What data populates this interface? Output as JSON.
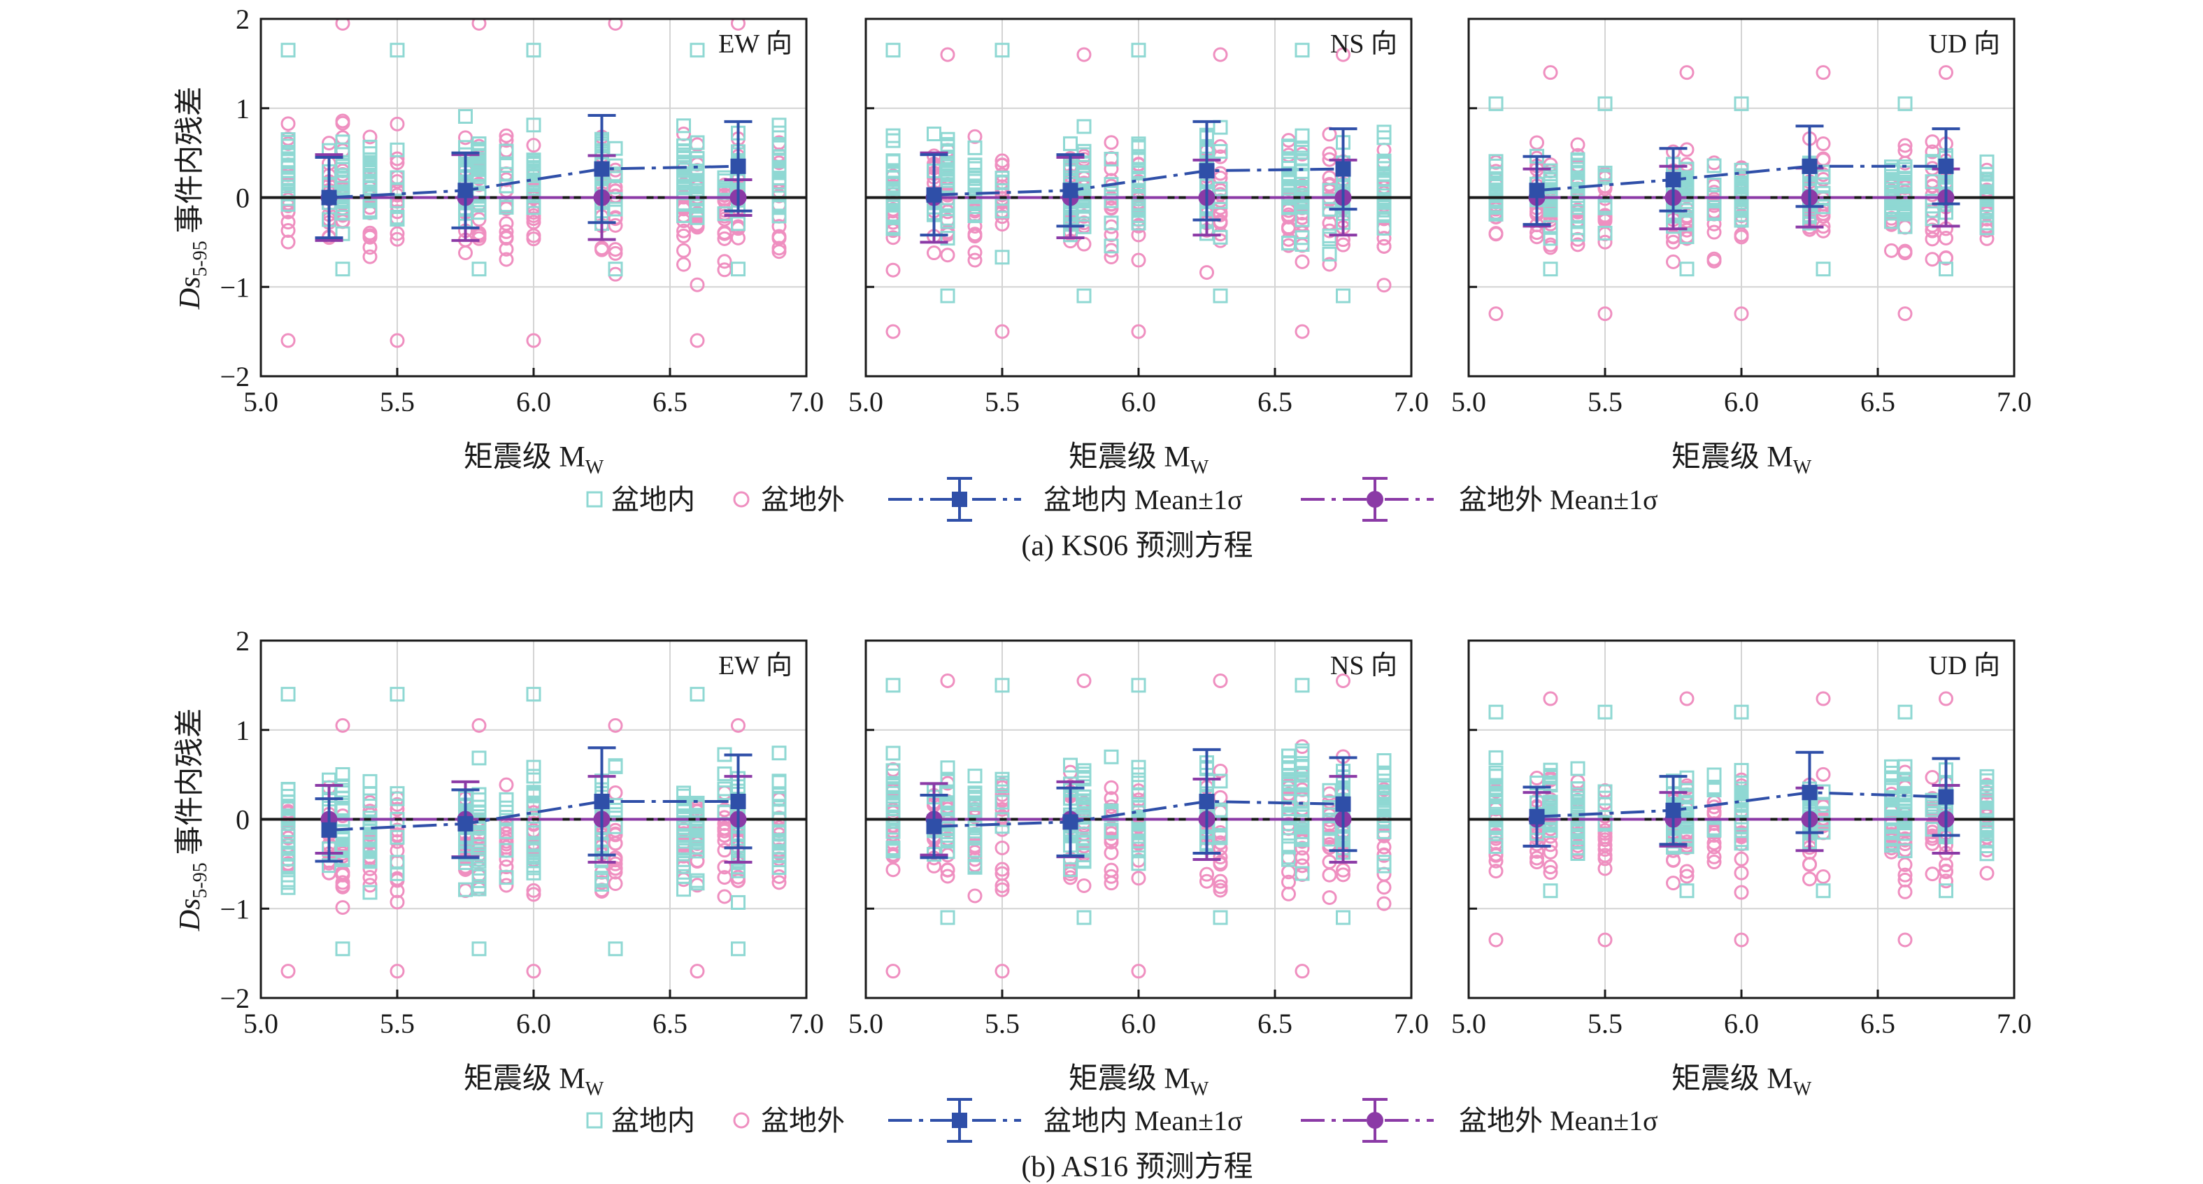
{
  "colors": {
    "in_basin": "#8fd8d3",
    "out_basin": "#ef8fc0",
    "in_mean": "#2f4fa8",
    "out_mean": "#8b3aa6",
    "grid": "#d4d4d4",
    "axis": "#1a1a1a"
  },
  "legend": {
    "in_basin": "盆地内",
    "out_basin": "盆地外",
    "in_mean": "盆地内 Mean±1σ",
    "out_mean": "盆地外 Mean±1σ"
  },
  "axis_text": {
    "xlabel": "矩震级 M",
    "xlabel_sub": "W",
    "ylabel_pre": "Ds",
    "ylabel_sub": "5-95",
    "ylabel_post": " 事件内残差"
  },
  "rows": [
    {
      "caption": "(a) KS06 预测方程",
      "panels": [
        "EW 向",
        "NS 向",
        "UD 向"
      ]
    },
    {
      "caption": "(b) AS16 预测方程",
      "panels": [
        "EW 向",
        "NS 向",
        "UD 向"
      ]
    }
  ],
  "chart_data": {
    "type": "scatter",
    "xlim": [
      5.0,
      7.0
    ],
    "ylim": [
      -2,
      2
    ],
    "xticks": [
      "5.0",
      "5.5",
      "6.0",
      "6.5",
      "7.0"
    ],
    "yticks": [
      "−2",
      "−1",
      "0",
      "1",
      "2"
    ],
    "grid": true,
    "reference_line_y": 0,
    "legend_position": "bottom",
    "magnitude_columns": [
      5.1,
      5.25,
      5.3,
      5.4,
      5.5,
      5.75,
      5.8,
      5.9,
      6.0,
      6.25,
      6.3,
      6.55,
      6.6,
      6.7,
      6.75,
      6.9
    ],
    "panels": [
      {
        "id": "a-EW",
        "in_basin_range": [
          -0.8,
          1.65
        ],
        "out_basin_range": [
          -1.6,
          1.95
        ],
        "in_mean": {
          "x": [
            5.25,
            5.75,
            6.25,
            6.75
          ],
          "mean": [
            0.0,
            0.08,
            0.32,
            0.35
          ],
          "sd": [
            0.45,
            0.42,
            0.6,
            0.5
          ]
        },
        "out_mean": {
          "x": [
            5.25,
            5.75,
            6.25,
            6.75
          ],
          "mean": [
            0,
            0,
            0,
            0
          ],
          "sd": [
            0.48,
            0.48,
            0.47,
            0.2
          ]
        }
      },
      {
        "id": "a-NS",
        "in_basin_range": [
          -1.1,
          1.65
        ],
        "out_basin_range": [
          -1.5,
          1.6
        ],
        "in_mean": {
          "x": [
            5.25,
            5.75,
            6.25,
            6.75
          ],
          "mean": [
            0.03,
            0.08,
            0.3,
            0.32
          ],
          "sd": [
            0.45,
            0.4,
            0.55,
            0.45
          ]
        },
        "out_mean": {
          "x": [
            5.25,
            5.75,
            6.25,
            6.75
          ],
          "mean": [
            0,
            0,
            0,
            0
          ],
          "sd": [
            0.5,
            0.45,
            0.42,
            0.42
          ]
        }
      },
      {
        "id": "a-UD",
        "in_basin_range": [
          -0.8,
          1.05
        ],
        "out_basin_range": [
          -1.3,
          1.4
        ],
        "in_mean": {
          "x": [
            5.25,
            5.75,
            6.25,
            6.75
          ],
          "mean": [
            0.08,
            0.2,
            0.35,
            0.35
          ],
          "sd": [
            0.38,
            0.35,
            0.45,
            0.42
          ]
        },
        "out_mean": {
          "x": [
            5.25,
            5.75,
            6.25,
            6.75
          ],
          "mean": [
            0,
            0,
            0,
            0
          ],
          "sd": [
            0.32,
            0.35,
            0.33,
            0.32
          ]
        }
      },
      {
        "id": "b-EW",
        "in_basin_range": [
          -1.45,
          1.4
        ],
        "out_basin_range": [
          -1.7,
          1.05
        ],
        "in_mean": {
          "x": [
            5.25,
            5.75,
            6.25,
            6.75
          ],
          "mean": [
            -0.12,
            -0.05,
            0.2,
            0.2
          ],
          "sd": [
            0.35,
            0.38,
            0.6,
            0.52
          ]
        },
        "out_mean": {
          "x": [
            5.25,
            5.75,
            6.25,
            6.75
          ],
          "mean": [
            0,
            0,
            0,
            0
          ],
          "sd": [
            0.38,
            0.42,
            0.48,
            0.48
          ]
        }
      },
      {
        "id": "b-NS",
        "in_basin_range": [
          -1.1,
          1.5
        ],
        "out_basin_range": [
          -1.7,
          1.55
        ],
        "in_mean": {
          "x": [
            5.25,
            5.75,
            6.25,
            6.75
          ],
          "mean": [
            -0.08,
            -0.03,
            0.2,
            0.17
          ],
          "sd": [
            0.35,
            0.38,
            0.58,
            0.52
          ]
        },
        "out_mean": {
          "x": [
            5.25,
            5.75,
            6.25,
            6.75
          ],
          "mean": [
            0,
            0,
            0,
            0
          ],
          "sd": [
            0.4,
            0.42,
            0.45,
            0.48
          ]
        }
      },
      {
        "id": "b-UD",
        "in_basin_range": [
          -0.8,
          1.2
        ],
        "out_basin_range": [
          -1.35,
          1.35
        ],
        "in_mean": {
          "x": [
            5.25,
            5.75,
            6.25,
            6.75
          ],
          "mean": [
            0.03,
            0.1,
            0.3,
            0.25
          ],
          "sd": [
            0.33,
            0.38,
            0.45,
            0.43
          ]
        },
        "out_mean": {
          "x": [
            5.25,
            5.75,
            6.25,
            6.75
          ],
          "mean": [
            0,
            0,
            0,
            0
          ],
          "sd": [
            0.3,
            0.3,
            0.35,
            0.38
          ]
        }
      }
    ]
  }
}
